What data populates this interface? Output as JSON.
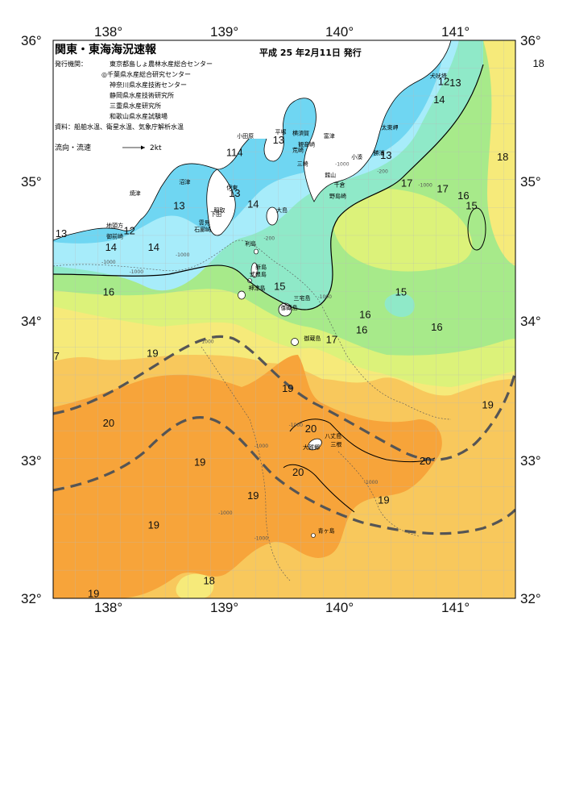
{
  "header": {
    "title": "関東・東海海況速報",
    "date": "平成 25 年2月11日 発行",
    "issuer_label": "発行機関：",
    "issuers": [
      "東京都島しょ農林水産総合センター",
      "◎千葉県水産総合研究センター",
      "神奈川県水産技術センター",
      "静岡県水産技術研究所",
      "三重県水産研究所",
      "和歌山県水産試験場"
    ],
    "sources": "資料：船舶水温、衛星水温、気象庁解析水温",
    "legend_label": "流向・流速",
    "legend_value": "2kt"
  },
  "axes": {
    "lon_ticks": [
      "138°",
      "139°",
      "140°",
      "141°"
    ],
    "lat_left": [
      "36°",
      "35°",
      "34°",
      "33°",
      "32°"
    ],
    "lat_right": [
      "36°",
      "35°",
      "34°",
      "33°",
      "32°"
    ]
  },
  "colors": {
    "t13": "#6fd6f2",
    "t14": "#a7ecfa",
    "t15": "#8fe9c8",
    "t16": "#a7ea8a",
    "t17": "#dcf27a",
    "t18": "#f6ea7a",
    "t19": "#f8c85c",
    "t20": "#f7a43a",
    "land": "#ffffff",
    "current": "#555555"
  },
  "isotherm_labels": [
    {
      "text": "13",
      "lon": 137.57,
      "lat": 34.59
    },
    {
      "text": "14",
      "lon": 138.0,
      "lat": 34.49
    },
    {
      "text": "14",
      "lon": 138.37,
      "lat": 34.49
    },
    {
      "text": "13",
      "lon": 138.59,
      "lat": 34.79
    },
    {
      "text": "12",
      "lon": 138.16,
      "lat": 34.61
    },
    {
      "text": "16",
      "lon": 137.98,
      "lat": 34.17
    },
    {
      "text": "13",
      "lon": 139.07,
      "lat": 34.88
    },
    {
      "text": "14",
      "lon": 139.23,
      "lat": 34.8
    },
    {
      "text": "114",
      "lon": 139.07,
      "lat": 35.17
    },
    {
      "text": "13",
      "lon": 139.45,
      "lat": 35.26
    },
    {
      "text": "13",
      "lon": 140.38,
      "lat": 35.15
    },
    {
      "text": "12",
      "lon": 140.88,
      "lat": 35.68
    },
    {
      "text": "13",
      "lon": 140.98,
      "lat": 35.67
    },
    {
      "text": "14",
      "lon": 140.84,
      "lat": 35.55
    },
    {
      "text": "18",
      "lon": 141.7,
      "lat": 35.81
    },
    {
      "text": "18",
      "lon": 141.39,
      "lat": 35.14
    },
    {
      "text": "17",
      "lon": 140.56,
      "lat": 34.95
    },
    {
      "text": "17",
      "lon": 140.87,
      "lat": 34.91
    },
    {
      "text": "16",
      "lon": 141.05,
      "lat": 34.86
    },
    {
      "text": "15",
      "lon": 141.12,
      "lat": 34.79
    },
    {
      "text": "15",
      "lon": 139.46,
      "lat": 34.21
    },
    {
      "text": "15",
      "lon": 140.51,
      "lat": 34.17
    },
    {
      "text": "16",
      "lon": 140.2,
      "lat": 34.01
    },
    {
      "text": "16",
      "lon": 140.17,
      "lat": 33.9
    },
    {
      "text": "16",
      "lon": 140.82,
      "lat": 33.92
    },
    {
      "text": "17",
      "lon": 139.91,
      "lat": 33.83
    },
    {
      "text": "7",
      "lon": 137.53,
      "lat": 33.71
    },
    {
      "text": "19",
      "lon": 138.36,
      "lat": 33.73
    },
    {
      "text": "19",
      "lon": 139.53,
      "lat": 33.48
    },
    {
      "text": "19",
      "lon": 141.26,
      "lat": 33.36
    },
    {
      "text": "20",
      "lon": 137.98,
      "lat": 33.23
    },
    {
      "text": "20",
      "lon": 139.73,
      "lat": 33.19
    },
    {
      "text": "20",
      "lon": 140.72,
      "lat": 32.96
    },
    {
      "text": "20",
      "lon": 139.62,
      "lat": 32.88
    },
    {
      "text": "19",
      "lon": 138.77,
      "lat": 32.95
    },
    {
      "text": "19",
      "lon": 139.23,
      "lat": 32.71
    },
    {
      "text": "19",
      "lon": 140.36,
      "lat": 32.68
    },
    {
      "text": "19",
      "lon": 138.37,
      "lat": 32.5
    },
    {
      "text": "18",
      "lon": 138.85,
      "lat": 32.1
    },
    {
      "text": "19",
      "lon": 137.85,
      "lat": 32.01
    }
  ],
  "place_labels": [
    {
      "text": "犬吠埼",
      "lon": 140.76,
      "lat": 35.73
    },
    {
      "text": "太東岬",
      "lon": 140.34,
      "lat": 35.36
    },
    {
      "text": "勝浦",
      "lon": 140.27,
      "lat": 35.18
    },
    {
      "text": "小湊",
      "lon": 140.08,
      "lat": 35.15
    },
    {
      "text": "平塚",
      "lon": 139.42,
      "lat": 35.33
    },
    {
      "text": "横須賀",
      "lon": 139.57,
      "lat": 35.32
    },
    {
      "text": "富津",
      "lon": 139.84,
      "lat": 35.3
    },
    {
      "text": "小田原",
      "lon": 139.09,
      "lat": 35.3
    },
    {
      "text": "観音崎",
      "lon": 139.62,
      "lat": 35.24
    },
    {
      "text": "荒崎",
      "lon": 139.57,
      "lat": 35.2
    },
    {
      "text": "三崎",
      "lon": 139.61,
      "lat": 35.1
    },
    {
      "text": "館山",
      "lon": 139.85,
      "lat": 35.02
    },
    {
      "text": "千倉",
      "lon": 139.93,
      "lat": 34.95
    },
    {
      "text": "野島崎",
      "lon": 139.89,
      "lat": 34.87
    },
    {
      "text": "焼津",
      "lon": 138.16,
      "lat": 34.89
    },
    {
      "text": "沼津",
      "lon": 138.59,
      "lat": 34.97
    },
    {
      "text": "伊東",
      "lon": 139.0,
      "lat": 34.93
    },
    {
      "text": "下田",
      "lon": 138.86,
      "lat": 34.74
    },
    {
      "text": "稲取",
      "lon": 138.89,
      "lat": 34.77
    },
    {
      "text": "大島",
      "lon": 139.43,
      "lat": 34.77
    },
    {
      "text": "地頭方",
      "lon": 137.96,
      "lat": 34.66
    },
    {
      "text": "御前崎",
      "lon": 137.96,
      "lat": 34.58
    },
    {
      "text": "雲見",
      "lon": 138.76,
      "lat": 34.68
    },
    {
      "text": "石廊崎",
      "lon": 138.72,
      "lat": 34.63
    },
    {
      "text": "利島",
      "lon": 139.16,
      "lat": 34.53
    },
    {
      "text": "新島",
      "lon": 139.25,
      "lat": 34.36
    },
    {
      "text": "式根島",
      "lon": 139.2,
      "lat": 34.31
    },
    {
      "text": "神津島",
      "lon": 139.19,
      "lat": 34.21
    },
    {
      "text": "三宅島",
      "lon": 139.58,
      "lat": 34.14
    },
    {
      "text": "御蔵島",
      "lon": 139.47,
      "lat": 34.07
    },
    {
      "text": "御蔵島",
      "lon": 139.67,
      "lat": 33.85
    },
    {
      "text": "八丈島",
      "lon": 139.85,
      "lat": 33.15
    },
    {
      "text": "三根",
      "lon": 139.9,
      "lat": 33.09
    },
    {
      "text": "大賀郷",
      "lon": 139.66,
      "lat": 33.07
    },
    {
      "text": "青ヶ島",
      "lon": 139.79,
      "lat": 32.47
    }
  ],
  "depth_labels": [
    {
      "text": "-1000",
      "lon": 137.98,
      "lat": 34.4
    },
    {
      "text": "-1000",
      "lon": 138.62,
      "lat": 34.45
    },
    {
      "text": "-1000",
      "lon": 138.22,
      "lat": 34.33
    },
    {
      "text": "-200",
      "lon": 139.37,
      "lat": 34.57
    },
    {
      "text": "-1000",
      "lon": 139.85,
      "lat": 34.15
    },
    {
      "text": "-1000",
      "lon": 140.72,
      "lat": 34.95
    },
    {
      "text": "-200",
      "lon": 140.35,
      "lat": 35.05
    },
    {
      "text": "-1000",
      "lon": 140.0,
      "lat": 35.1
    },
    {
      "text": "-1000",
      "lon": 138.83,
      "lat": 33.83
    },
    {
      "text": "-1000",
      "lon": 139.6,
      "lat": 33.23
    },
    {
      "text": "-1000",
      "lon": 139.3,
      "lat": 33.08
    },
    {
      "text": "-1000",
      "lon": 140.25,
      "lat": 32.82
    },
    {
      "text": "-1000",
      "lon": 138.99,
      "lat": 32.6
    },
    {
      "text": "-1000",
      "lon": 139.3,
      "lat": 32.42
    }
  ]
}
